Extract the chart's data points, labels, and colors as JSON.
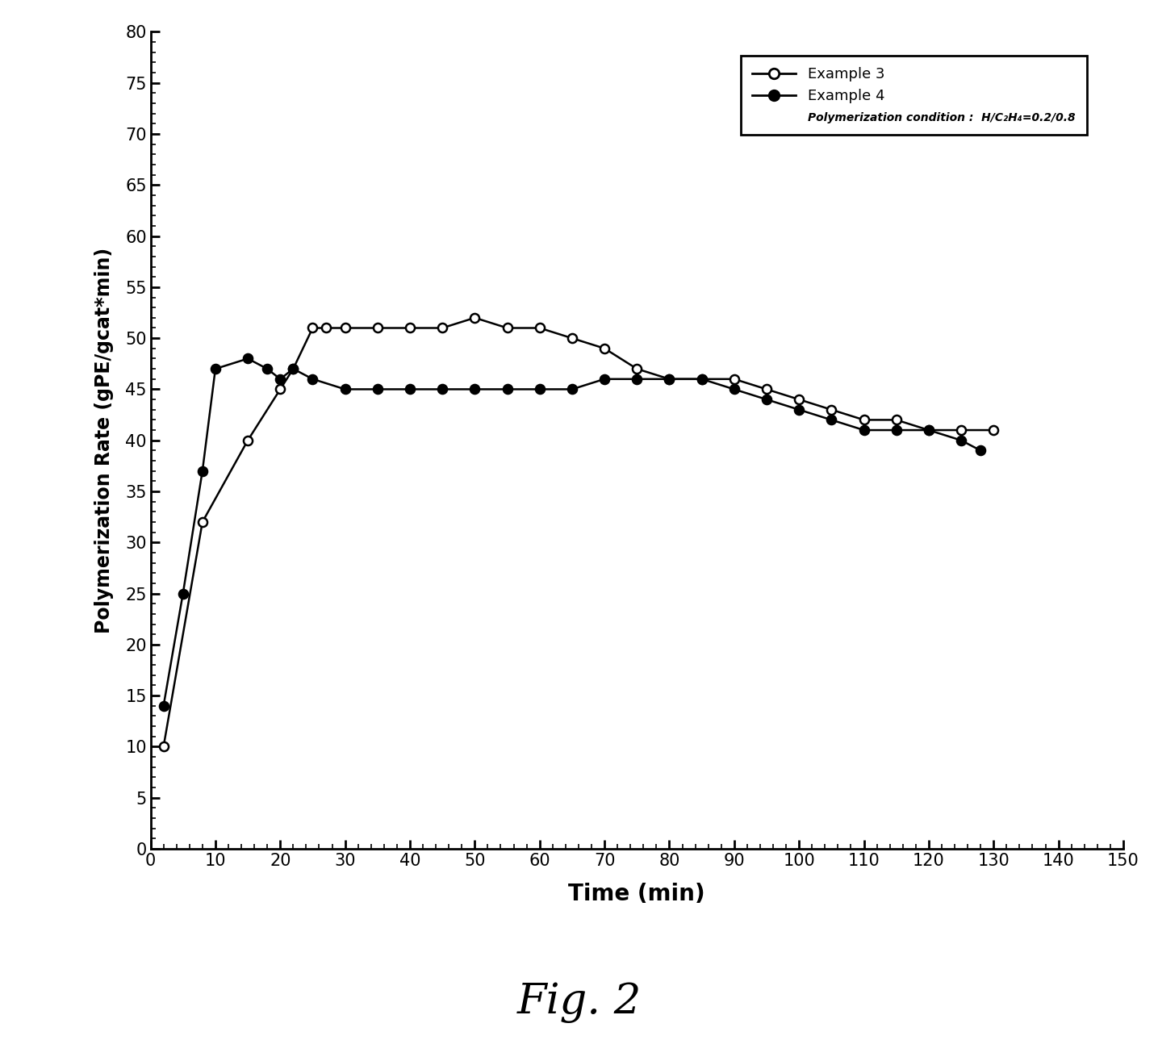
{
  "title": "Fig. 2",
  "xlabel": "Time (min)",
  "ylabel": "Polymerization Rate (gPE/gcat*min)",
  "xlim": [
    0,
    150
  ],
  "ylim": [
    0,
    80
  ],
  "xticks": [
    0,
    10,
    20,
    30,
    40,
    50,
    60,
    70,
    80,
    90,
    100,
    110,
    120,
    130,
    140,
    150
  ],
  "yticks": [
    0,
    5,
    10,
    15,
    20,
    25,
    30,
    35,
    40,
    45,
    50,
    55,
    60,
    65,
    70,
    75,
    80
  ],
  "example3_x": [
    2,
    8,
    15,
    20,
    22,
    25,
    27,
    30,
    35,
    40,
    45,
    50,
    55,
    60,
    65,
    70,
    75,
    80,
    85,
    90,
    95,
    100,
    105,
    110,
    115,
    120,
    125,
    130
  ],
  "example3_y": [
    10,
    32,
    40,
    45,
    47,
    51,
    51,
    51,
    51,
    51,
    51,
    52,
    51,
    51,
    50,
    49,
    47,
    46,
    46,
    46,
    45,
    44,
    43,
    42,
    42,
    41,
    41,
    41
  ],
  "example4_x": [
    2,
    5,
    8,
    10,
    15,
    18,
    20,
    22,
    25,
    30,
    35,
    40,
    45,
    50,
    55,
    60,
    65,
    70,
    75,
    80,
    85,
    90,
    95,
    100,
    105,
    110,
    115,
    120,
    125,
    128
  ],
  "example4_y": [
    14,
    25,
    37,
    47,
    48,
    47,
    46,
    47,
    46,
    45,
    45,
    45,
    45,
    45,
    45,
    45,
    45,
    46,
    46,
    46,
    46,
    45,
    44,
    43,
    42,
    41,
    41,
    41,
    40,
    39
  ],
  "legend_label3": "Example 3",
  "legend_label4": "Example 4",
  "condition_text": "Polymerization condition :  H/C₂H₄=0.2/0.8",
  "background_color": "#ffffff",
  "line_color": "#000000"
}
